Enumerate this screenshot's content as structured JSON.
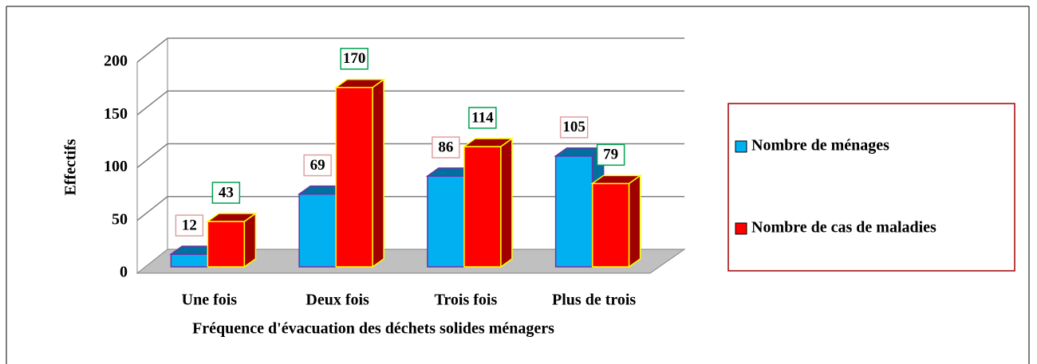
{
  "chart_data": {
    "type": "bar",
    "categories": [
      "Une fois",
      "Deux fois",
      "Trois fois",
      "Plus de trois"
    ],
    "series": [
      {
        "name": "Nombre de ménages",
        "color": "#00b0f0",
        "values": [
          12,
          69,
          86,
          105
        ]
      },
      {
        "name": "Nombre de cas de maladies",
        "color": "#ff0000",
        "values": [
          43,
          170,
          114,
          79
        ]
      }
    ],
    "x_label": "Fréquence d'évacuation des déchets solides ménagers",
    "y_label": "Effectifs",
    "ylim": [
      0,
      200
    ],
    "yticks": [
      0,
      50,
      100,
      150,
      200
    ],
    "grid": true,
    "legend": "right"
  }
}
